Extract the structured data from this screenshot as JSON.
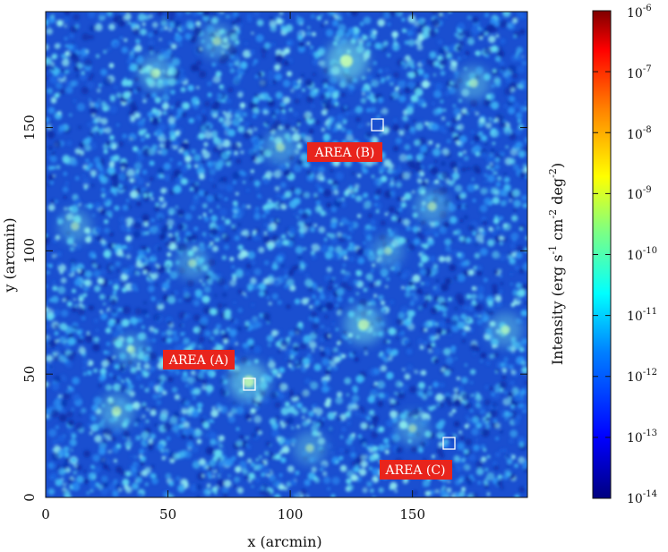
{
  "chart_data": {
    "type": "heatmap",
    "xlabel": "x (arcmin)",
    "ylabel": "y (arcmin)",
    "xlim": [
      0,
      197
    ],
    "ylim": [
      0,
      197
    ],
    "xticks": [
      "0",
      "50",
      "100",
      "150"
    ],
    "yticks": [
      "0",
      "50",
      "100",
      "150"
    ],
    "xtick_values": [
      0,
      50,
      100,
      150
    ],
    "ytick_values": [
      0,
      50,
      100,
      150
    ],
    "colorbar": {
      "label_main": "Intensity (erg s",
      "label_pow1": "-1",
      "label_mid": " cm",
      "label_pow2": "-2",
      "label_mid2": " deg",
      "label_pow3": "-2",
      "label_end": ")",
      "scale": "log",
      "range": [
        1e-14,
        1e-06
      ],
      "tick_base": "10",
      "tick_exponents": [
        "-14",
        "-13",
        "-12",
        "-11",
        "-10",
        "-9",
        "-8",
        "-7",
        "-6"
      ],
      "colormap": [
        "#00007f",
        "#0000ff",
        "#0080ff",
        "#00ffff",
        "#80ff80",
        "#ffff00",
        "#ff8000",
        "#ff0000",
        "#7f0000"
      ]
    },
    "annotations": [
      {
        "label": "AREA (A)",
        "box_x": 84,
        "box_y": 47
      },
      {
        "label": "AREA (B)",
        "box_x": 137,
        "box_y": 153
      },
      {
        "label": "AREA (C)",
        "box_x": 167,
        "box_y": 23
      }
    ],
    "bright_sources": [
      {
        "x": 123,
        "y": 177,
        "intensity": 1.0
      },
      {
        "x": 130,
        "y": 70,
        "intensity": 0.8
      },
      {
        "x": 83,
        "y": 47,
        "intensity": 0.9
      },
      {
        "x": 29,
        "y": 35,
        "intensity": 0.6
      },
      {
        "x": 45,
        "y": 172,
        "intensity": 0.6
      },
      {
        "x": 158,
        "y": 118,
        "intensity": 0.55
      },
      {
        "x": 96,
        "y": 142,
        "intensity": 0.5
      },
      {
        "x": 188,
        "y": 68,
        "intensity": 0.55
      },
      {
        "x": 12,
        "y": 110,
        "intensity": 0.45
      },
      {
        "x": 60,
        "y": 95,
        "intensity": 0.45
      },
      {
        "x": 150,
        "y": 28,
        "intensity": 0.45
      },
      {
        "x": 175,
        "y": 168,
        "intensity": 0.5
      },
      {
        "x": 108,
        "y": 20,
        "intensity": 0.45
      },
      {
        "x": 70,
        "y": 185,
        "intensity": 0.5
      },
      {
        "x": 35,
        "y": 60,
        "intensity": 0.4
      },
      {
        "x": 140,
        "y": 100,
        "intensity": 0.4
      }
    ]
  }
}
